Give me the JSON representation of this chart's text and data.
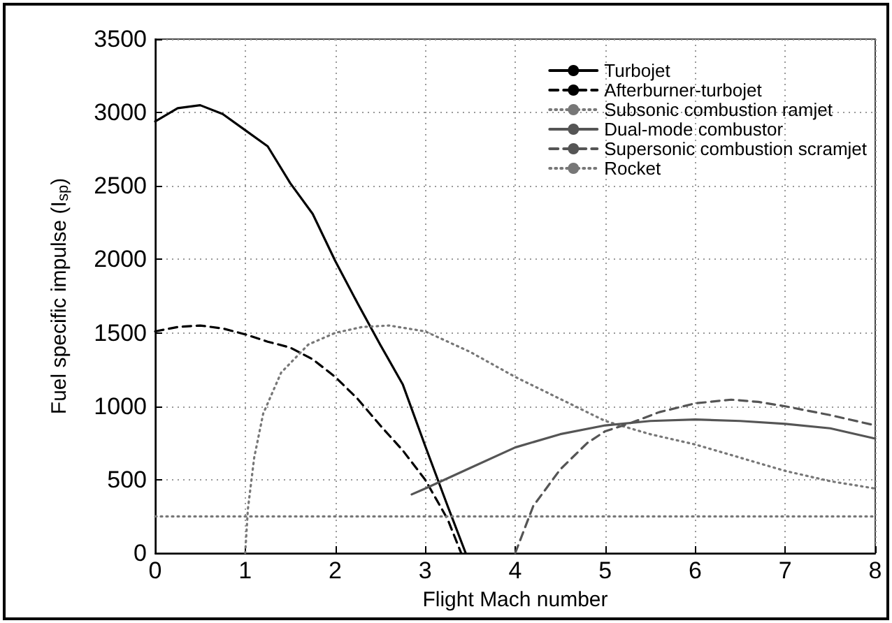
{
  "chart_data": {
    "type": "line",
    "xlabel": "Flight Mach number",
    "ylabel": "Fuel specific impulse (I$_{sp}$)",
    "xlim": [
      0,
      8
    ],
    "xticks": [
      0,
      1,
      2,
      3,
      4,
      5,
      6,
      7,
      8
    ],
    "ylim": [
      0,
      3500
    ],
    "yticks": [
      0,
      500,
      1000,
      1500,
      2000,
      2500,
      3000,
      3500
    ],
    "grid": true,
    "legend": "top right",
    "marker": "none",
    "series": [
      {
        "name": "Turbojet",
        "color": "#000000",
        "line_style": "solid",
        "x": [
          0,
          0.25,
          0.5,
          0.75,
          1,
          1.25,
          1.5,
          1.75,
          2,
          2.25,
          2.5,
          2.75,
          3,
          3.25,
          3.45
        ],
        "values": [
          2940,
          3030,
          3050,
          2990,
          2880,
          2770,
          2520,
          2310,
          1990,
          1700,
          1420,
          1150,
          730,
          320,
          0
        ]
      },
      {
        "name": "Afterburner-turbojet",
        "color": "#000000",
        "line_style": "dashed",
        "x": [
          0,
          0.25,
          0.5,
          0.75,
          1,
          1.25,
          1.5,
          1.75,
          2,
          2.25,
          2.5,
          2.75,
          3,
          3.25,
          3.4
        ],
        "values": [
          1510,
          1540,
          1550,
          1530,
          1490,
          1440,
          1400,
          1320,
          1200,
          1050,
          870,
          700,
          500,
          230,
          0
        ]
      },
      {
        "name": "Subsonic combustion ramjet",
        "color": "#777777",
        "line_style": "dotted",
        "x": [
          1,
          1.03,
          1.1,
          1.2,
          1.4,
          1.7,
          2,
          2.3,
          2.6,
          3,
          3.5,
          4,
          4.5,
          5,
          5.5,
          6,
          6.5,
          7,
          7.5,
          8
        ],
        "values": [
          0,
          300,
          650,
          950,
          1230,
          1420,
          1500,
          1540,
          1550,
          1510,
          1370,
          1200,
          1050,
          900,
          810,
          740,
          650,
          560,
          490,
          440
        ]
      },
      {
        "name": "Dual-mode combustor",
        "color": "#555555",
        "line_style": "solid",
        "x": [
          2.85,
          3,
          3.25,
          3.5,
          4,
          4.5,
          5,
          5.5,
          6,
          6.5,
          7,
          7.5,
          8
        ],
        "values": [
          400,
          440,
          510,
          580,
          720,
          810,
          870,
          900,
          910,
          900,
          880,
          850,
          780
        ]
      },
      {
        "name": "Supersonic combustion scramjet",
        "color": "#555555",
        "line_style": "dashed",
        "x": [
          4,
          4.2,
          4.5,
          4.8,
          5,
          5.3,
          5.6,
          6,
          6.4,
          6.7,
          7,
          7.5,
          8
        ],
        "values": [
          0,
          320,
          570,
          750,
          830,
          890,
          960,
          1020,
          1045,
          1030,
          1000,
          940,
          870
        ]
      },
      {
        "name": "Rocket",
        "color": "#777777",
        "line_style": "dotted",
        "x": [
          0,
          8
        ],
        "values": [
          250,
          250
        ]
      }
    ]
  }
}
